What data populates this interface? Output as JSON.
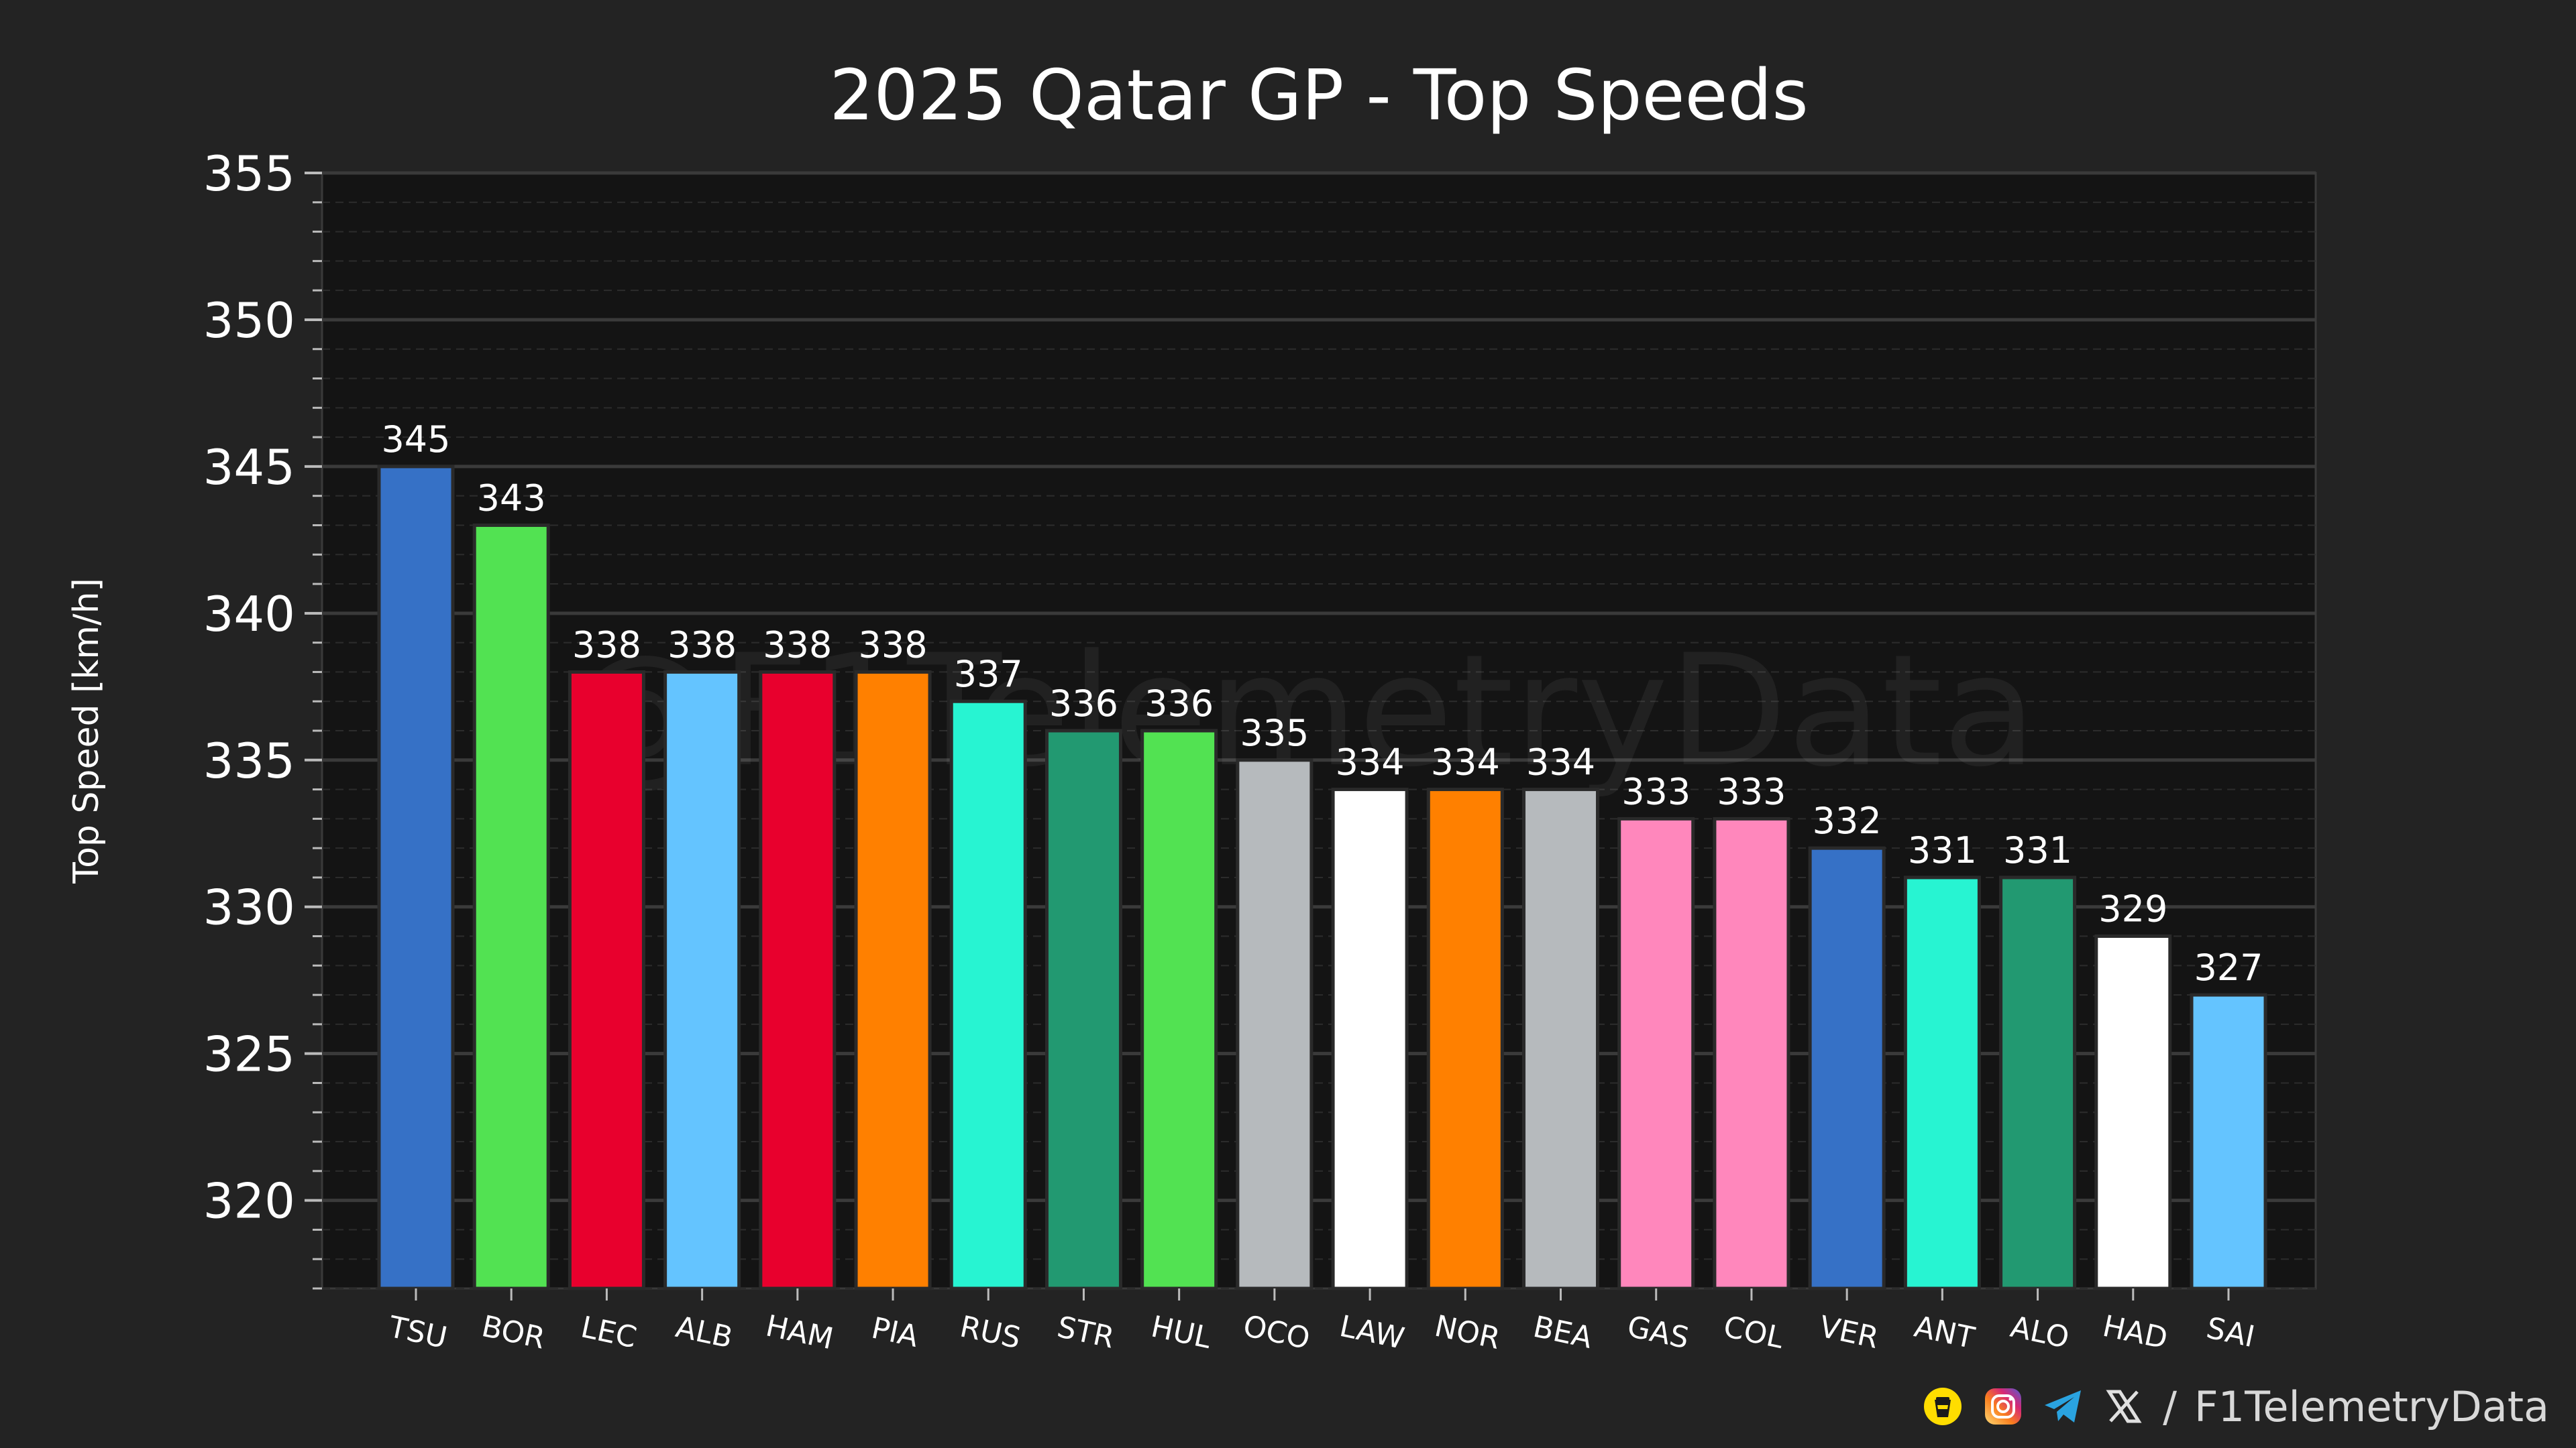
{
  "chart_data": {
    "type": "bar",
    "title": "2025 Qatar GP - Top Speeds",
    "xlabel": "",
    "ylabel": "Top Speed [km/h]",
    "ylim": [
      317,
      355
    ],
    "yticks": [
      320,
      325,
      330,
      335,
      340,
      345,
      350,
      355
    ],
    "grid": true,
    "categories": [
      "TSU",
      "BOR",
      "LEC",
      "ALB",
      "HAM",
      "PIA",
      "RUS",
      "STR",
      "HUL",
      "OCO",
      "LAW",
      "NOR",
      "BEA",
      "GAS",
      "COL",
      "VER",
      "ANT",
      "ALO",
      "HAD",
      "SAI"
    ],
    "values": [
      345,
      343,
      338,
      338,
      338,
      338,
      337,
      336,
      336,
      335,
      334,
      334,
      334,
      333,
      333,
      332,
      331,
      331,
      329,
      327
    ],
    "value_labels": [
      "345",
      "343",
      "338",
      "338",
      "338",
      "338",
      "337",
      "336",
      "336",
      "335",
      "334",
      "334",
      "334",
      "333",
      "333",
      "332",
      "331",
      "331",
      "329",
      "327"
    ],
    "bar_colors": [
      "#3671C6",
      "#52E252",
      "#E8002D",
      "#64C4FF",
      "#E8002D",
      "#FF8000",
      "#27F4D2",
      "#229971",
      "#52E252",
      "#B6BABD",
      "#FFFFFF",
      "#FF8000",
      "#B6BABD",
      "#FF87BC",
      "#FF87BC",
      "#3671C6",
      "#27F4D2",
      "#229971",
      "#FFFFFF",
      "#64C4FF"
    ]
  },
  "watermark": "@F1TelemetryData",
  "footer": {
    "handle": "F1TelemetryData",
    "separator": "/",
    "icons": [
      "coffee-cup-icon",
      "instagram-icon",
      "telegram-icon",
      "x-icon"
    ]
  },
  "colors": {
    "background": "#232323",
    "plot_background": "#141414",
    "grid_major": "#3a3a3a",
    "grid_minor": "#2c2c2c",
    "text": "#ffffff"
  }
}
